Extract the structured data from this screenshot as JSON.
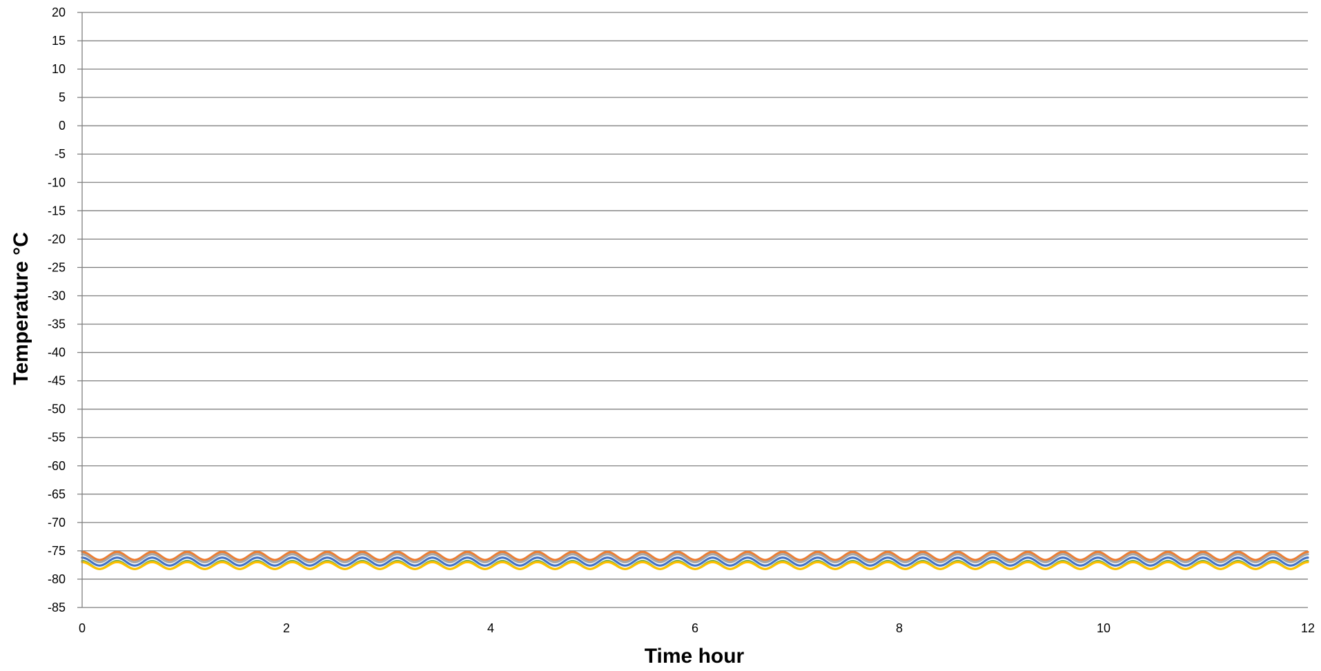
{
  "chart_data": {
    "type": "line",
    "title": "",
    "xlabel": "Time hour",
    "ylabel": "Temperature  °C",
    "xlim": [
      0,
      12
    ],
    "ylim": [
      -85,
      20
    ],
    "xticks": [
      0,
      2,
      4,
      6,
      8,
      10,
      12
    ],
    "yticks": [
      20,
      15,
      10,
      5,
      0,
      -5,
      -10,
      -15,
      -20,
      -25,
      -30,
      -35,
      -40,
      -45,
      -50,
      -55,
      -60,
      -65,
      -70,
      -75,
      -80,
      -85
    ],
    "grid": true,
    "legend": "none",
    "oscillation_period_hours": 0.3429,
    "series": [
      {
        "color": "#ed7d31",
        "mean": -75.9,
        "amplitude": 0.7,
        "phase": 0.0
      },
      {
        "color": "#a5a5a5",
        "mean": -76.3,
        "amplitude": 0.7,
        "phase": 0.0
      },
      {
        "color": "#4472c4",
        "mean": -76.9,
        "amplitude": 0.7,
        "phase": 0.0
      },
      {
        "color": "#70ad47",
        "mean": -77.5,
        "amplitude": 0.7,
        "phase": 0.0
      },
      {
        "color": "#ffc000",
        "mean": -77.6,
        "amplitude": 0.6,
        "phase": 0.0
      }
    ]
  }
}
